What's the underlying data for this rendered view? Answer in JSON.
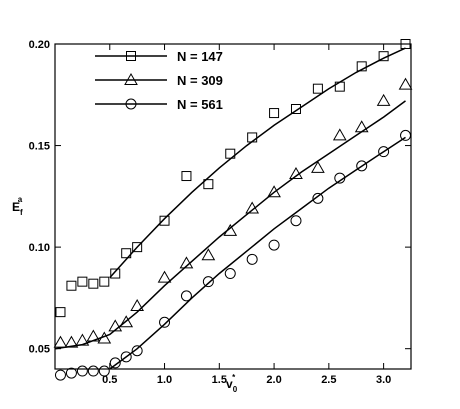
{
  "chart_data": {
    "type": "scatter",
    "xlabel": {
      "base": "v",
      "subscript": "0",
      "superscript": "*"
    },
    "ylabel": {
      "base": "E",
      "subscript": "f",
      "superscript": "a"
    },
    "xlim": [
      0.0,
      3.25
    ],
    "ylim": [
      0.04,
      0.2
    ],
    "xticks": [
      "0.5",
      "1.0",
      "1.5",
      "2.0",
      "2.5",
      "3.0"
    ],
    "xtick_values": [
      0.5,
      1.0,
      1.5,
      2.0,
      2.5,
      3.0
    ],
    "yticks": [
      "0.05",
      "0.10",
      "0.15",
      "0.20"
    ],
    "ytick_values": [
      0.05,
      0.1,
      0.15,
      0.2
    ],
    "grid": false,
    "legend_position": "top-left",
    "series": [
      {
        "name": "N = 147",
        "marker": "square",
        "x": [
          0.05,
          0.15,
          0.25,
          0.35,
          0.45,
          0.55,
          0.65,
          0.75,
          1.0,
          1.2,
          1.4,
          1.6,
          1.8,
          2.0,
          2.2,
          2.4,
          2.6,
          2.8,
          3.0,
          3.2
        ],
        "y": [
          0.068,
          0.081,
          0.083,
          0.082,
          0.083,
          0.087,
          0.097,
          0.1,
          0.113,
          0.135,
          0.131,
          0.146,
          0.154,
          0.166,
          0.168,
          0.178,
          0.179,
          0.189,
          0.194,
          0.2
        ],
        "fit_x": [
          0.5,
          0.75,
          1.0,
          1.25,
          1.5,
          1.75,
          2.0,
          2.25,
          2.5,
          2.75,
          3.0,
          3.2
        ],
        "fit_y": [
          0.085,
          0.1,
          0.114,
          0.127,
          0.139,
          0.15,
          0.16,
          0.169,
          0.178,
          0.186,
          0.193,
          0.198
        ]
      },
      {
        "name": "N = 309",
        "marker": "triangle",
        "x": [
          0.05,
          0.15,
          0.25,
          0.35,
          0.45,
          0.55,
          0.65,
          0.75,
          1.0,
          1.2,
          1.4,
          1.6,
          1.8,
          2.0,
          2.2,
          2.4,
          2.6,
          2.8,
          3.0,
          3.2
        ],
        "y": [
          0.053,
          0.053,
          0.054,
          0.056,
          0.055,
          0.061,
          0.063,
          0.071,
          0.085,
          0.092,
          0.096,
          0.108,
          0.119,
          0.127,
          0.136,
          0.139,
          0.155,
          0.159,
          0.172,
          0.18
        ],
        "fit_x": [
          0.0,
          0.25,
          0.5,
          0.75,
          1.0,
          1.25,
          1.5,
          1.75,
          2.0,
          2.25,
          2.5,
          2.75,
          3.0,
          3.2
        ],
        "fit_y": [
          0.05,
          0.052,
          0.057,
          0.068,
          0.081,
          0.093,
          0.105,
          0.116,
          0.127,
          0.137,
          0.146,
          0.155,
          0.164,
          0.172
        ]
      },
      {
        "name": "N = 561",
        "marker": "circle",
        "x": [
          0.05,
          0.15,
          0.25,
          0.35,
          0.45,
          0.55,
          0.65,
          0.75,
          1.0,
          1.2,
          1.4,
          1.6,
          1.8,
          2.0,
          2.2,
          2.4,
          2.6,
          2.8,
          3.0,
          3.2
        ],
        "y": [
          0.037,
          0.038,
          0.039,
          0.039,
          0.039,
          0.043,
          0.046,
          0.049,
          0.063,
          0.076,
          0.083,
          0.087,
          0.094,
          0.101,
          0.113,
          0.124,
          0.134,
          0.14,
          0.147,
          0.155
        ],
        "fit_x": [
          0.5,
          0.75,
          1.0,
          1.25,
          1.5,
          1.75,
          2.0,
          2.25,
          2.5,
          2.75,
          3.0,
          3.2
        ],
        "fit_y": [
          0.04,
          0.05,
          0.062,
          0.075,
          0.087,
          0.098,
          0.109,
          0.119,
          0.129,
          0.138,
          0.147,
          0.154
        ]
      }
    ]
  }
}
